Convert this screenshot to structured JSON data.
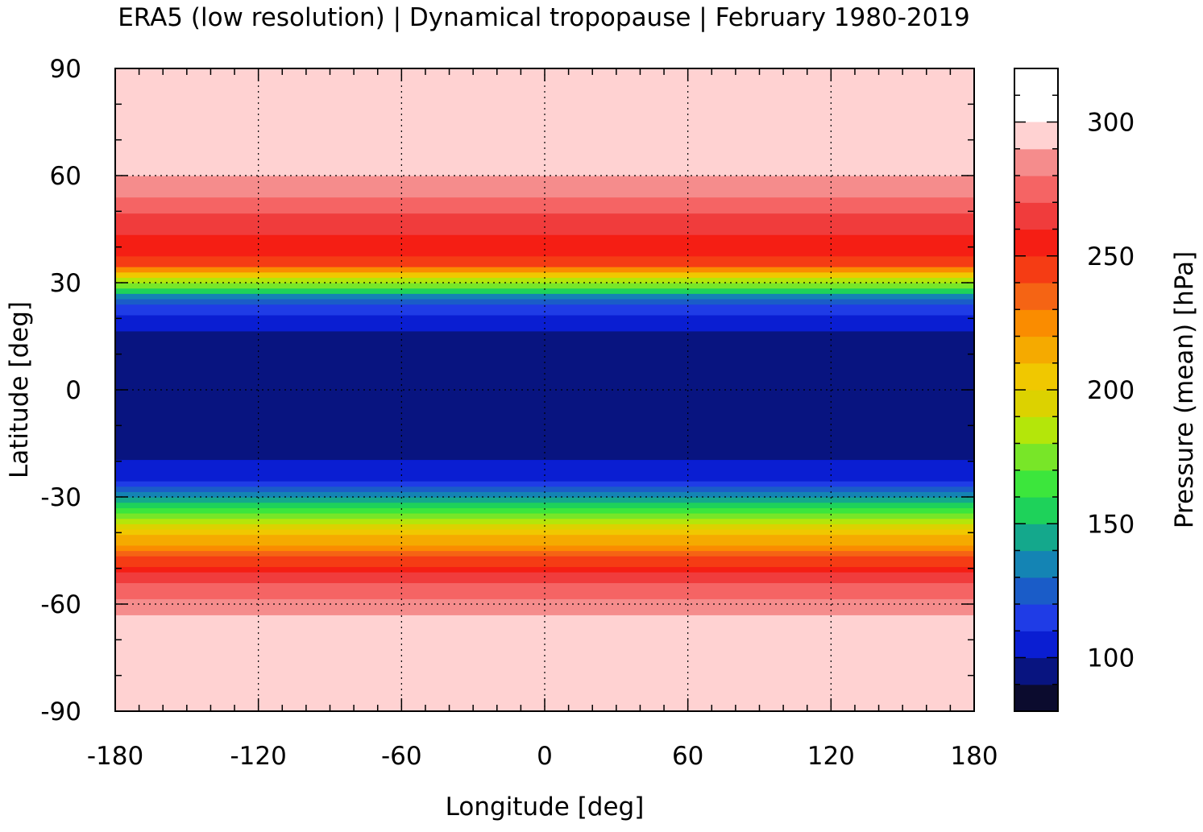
{
  "chart_data": {
    "type": "heatmap",
    "title": "ERA5 (low resolution) | Dynamical tropopause | February 1980-2019",
    "xlabel": "Longitude [deg]",
    "ylabel": "Latitude [deg]",
    "colorbar_label": "Pressure (mean) [hPa]",
    "xlim": [
      -180,
      180
    ],
    "ylim": [
      -90,
      90
    ],
    "x_ticks": [
      -180,
      -120,
      -60,
      0,
      60,
      120,
      180
    ],
    "x_tick_labels": [
      "-180",
      "-120",
      "-60",
      "0",
      "60",
      "120",
      "180"
    ],
    "y_ticks": [
      -90,
      -60,
      -30,
      0,
      30,
      60,
      90
    ],
    "y_tick_labels": [
      "-90",
      "-60",
      "-30",
      "0",
      "30",
      "60",
      "90"
    ],
    "colorbar_range": [
      80,
      320
    ],
    "colorbar_ticks": [
      100,
      150,
      200,
      250,
      300
    ],
    "colorbar_tick_labels": [
      "100",
      "150",
      "200",
      "250",
      "300"
    ],
    "colorbar_step": 10,
    "colorbar_colors": [
      "#0b0b2e",
      "#081480",
      "#0a1ed2",
      "#1f3ce6",
      "#1a5cc8",
      "#1484b4",
      "#14a88c",
      "#1ed25a",
      "#3ce63c",
      "#78e628",
      "#b4e60a",
      "#dcd200",
      "#f0c800",
      "#f5aa00",
      "#fa8c00",
      "#f56414",
      "#f53c14",
      "#f51e14",
      "#f03c3c",
      "#f56464",
      "#f58c8c",
      "#ffd2d2"
    ],
    "grid": true,
    "coastline_color": "#b4b4b4",
    "zonal_mean_profile": {
      "lat": [
        -90,
        -80,
        -75,
        -70,
        -65,
        -60,
        -55,
        -50,
        -45,
        -40,
        -35,
        -30,
        -25,
        -20,
        -15,
        -10,
        -5,
        0,
        5,
        10,
        15,
        20,
        25,
        30,
        35,
        40,
        45,
        50,
        55,
        60,
        65,
        70,
        75,
        80,
        85,
        90
      ],
      "pressure": [
        318,
        310,
        303,
        297,
        292,
        285,
        272,
        255,
        232,
        205,
        170,
        135,
        110,
        100,
        97,
        95,
        92,
        90,
        91,
        92,
        96,
        105,
        125,
        180,
        245,
        255,
        262,
        270,
        282,
        290,
        296,
        300,
        302,
        304,
        305,
        306
      ]
    }
  }
}
